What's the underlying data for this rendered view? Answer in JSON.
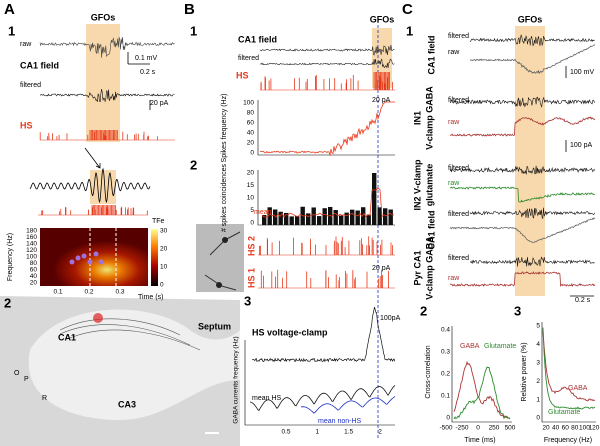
{
  "A": {
    "label": "A",
    "sub1": "1",
    "gfos": "GFOs",
    "raw": "raw",
    "scale_v": "0.1 mV",
    "scale_t": "0.2 s",
    "ca1_field": "CA1 field",
    "filtered": "filtered",
    "scale_pa": "20 pA",
    "hs": "HS",
    "colorbar_label": "TFe",
    "colorbar_ticks": [
      "30",
      "20",
      "10",
      "0"
    ],
    "freq_label": "Frequency (Hz)",
    "freq_ticks": [
      "180",
      "160",
      "140",
      "120",
      "100",
      "80",
      "60",
      "40",
      "20"
    ],
    "time_ticks": [
      "0.1",
      "0.2",
      "0.3"
    ],
    "time_label": "Time (s)",
    "sub2": "2",
    "anatomy": {
      "ca1": "CA1",
      "septum": "Septum",
      "ca3": "CA3",
      "o": "O",
      "p": "P",
      "r": "R"
    }
  },
  "B": {
    "label": "B",
    "sub1": "1",
    "gfos": "GFOs",
    "ca1_field": "CA1 field",
    "filtered": "filtered",
    "hs": "HS",
    "scale_pa1": "20 pA",
    "spike_freq_label": "Spikes frequency (Hz)",
    "spike_freq_ticks": [
      "100",
      "80",
      "60",
      "40",
      "20",
      "0"
    ],
    "sub2": "2",
    "coinc_label": "# spikes coincidences",
    "coinc_ticks": [
      "20",
      "15",
      "10",
      "5",
      "0"
    ],
    "mean": "mean",
    "hs2": "HS 2",
    "hs1": "HS 1",
    "scale_pa2": "20 pA",
    "sub3": "3",
    "scale_pa3": "100pA",
    "voltage_clamp": "HS voltage-clamp",
    "mean_hs": "mean HS",
    "mean_non_hs": "mean non-HS",
    "gaba_label": "GABA currents frequency (Hz)",
    "time_ticks": [
      "0.5",
      "1",
      "1.5",
      "2"
    ]
  },
  "C": {
    "label": "C",
    "sub1": "1",
    "gfos": "GFOs",
    "rows": [
      {
        "name": "CA1 field",
        "filtered": "filtered",
        "raw": "raw",
        "scale": "100 mV"
      },
      {
        "name": "IN1",
        "sub": "V-clamp GABA",
        "filtered": "filtered",
        "raw": "raw",
        "scale": "100 pA"
      },
      {
        "name": "IN2 V-clamp",
        "sub": "glutamate",
        "filtered": "filtered",
        "raw": "raw"
      },
      {
        "name": "CA1 field",
        "filtered": "filtered"
      },
      {
        "name": "Pyr CA1",
        "sub": "V-clamp GABA",
        "filtered": "filtered",
        "raw": "raw"
      }
    ],
    "scale_t": "0.2 s",
    "sub2": "2",
    "sub3": "3",
    "xcorr_label": "Cross-correlation",
    "xcorr_ticks": [
      "0.4",
      "0.3",
      "0.2",
      "0.1",
      "0"
    ],
    "time_ms_ticks": [
      "-500",
      "-250",
      "0",
      "250",
      "500"
    ],
    "time_ms_label": "Time (ms)",
    "gaba": "GABA",
    "glutamate": "Glutamate",
    "power_label": "Relative power (%)",
    "power_ticks": [
      "5",
      "4",
      "3",
      "2",
      "1",
      "0"
    ],
    "freq_ticks": [
      "20",
      "40",
      "60",
      "80",
      "100",
      "120"
    ],
    "freq_label": "Frequency (Hz)"
  }
}
